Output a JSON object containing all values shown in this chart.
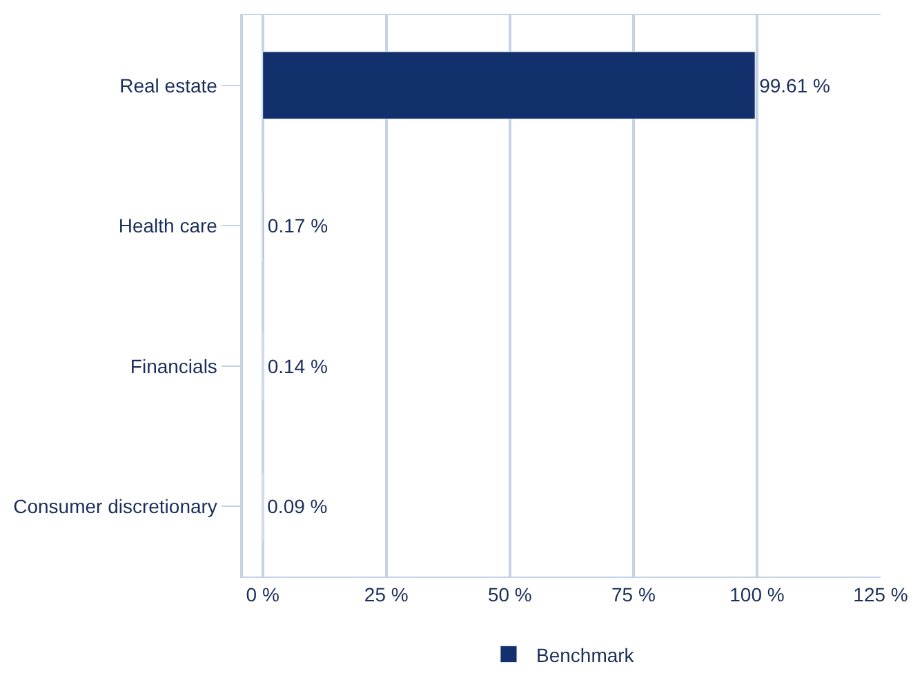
{
  "chart_data": {
    "type": "bar",
    "orientation": "horizontal",
    "categories": [
      "Real estate",
      "Health care",
      "Financials",
      "Consumer discretionary"
    ],
    "series": [
      {
        "name": "Benchmark",
        "color": "#12306b",
        "values": [
          99.61,
          0.17,
          0.14,
          0.09
        ],
        "value_labels": [
          "99.61 %",
          "0.17 %",
          "0.14 %",
          "0.09 %"
        ]
      }
    ],
    "xlim": [
      -4,
      125
    ],
    "xticks": [
      {
        "value": 0,
        "label": "0 %"
      },
      {
        "value": 25,
        "label": "25 %"
      },
      {
        "value": 50,
        "label": "50 %"
      },
      {
        "value": 75,
        "label": "75 %"
      },
      {
        "value": 100,
        "label": "100 %"
      },
      {
        "value": 125,
        "label": "125 %"
      }
    ],
    "grid": "x",
    "legend": "bottom"
  }
}
